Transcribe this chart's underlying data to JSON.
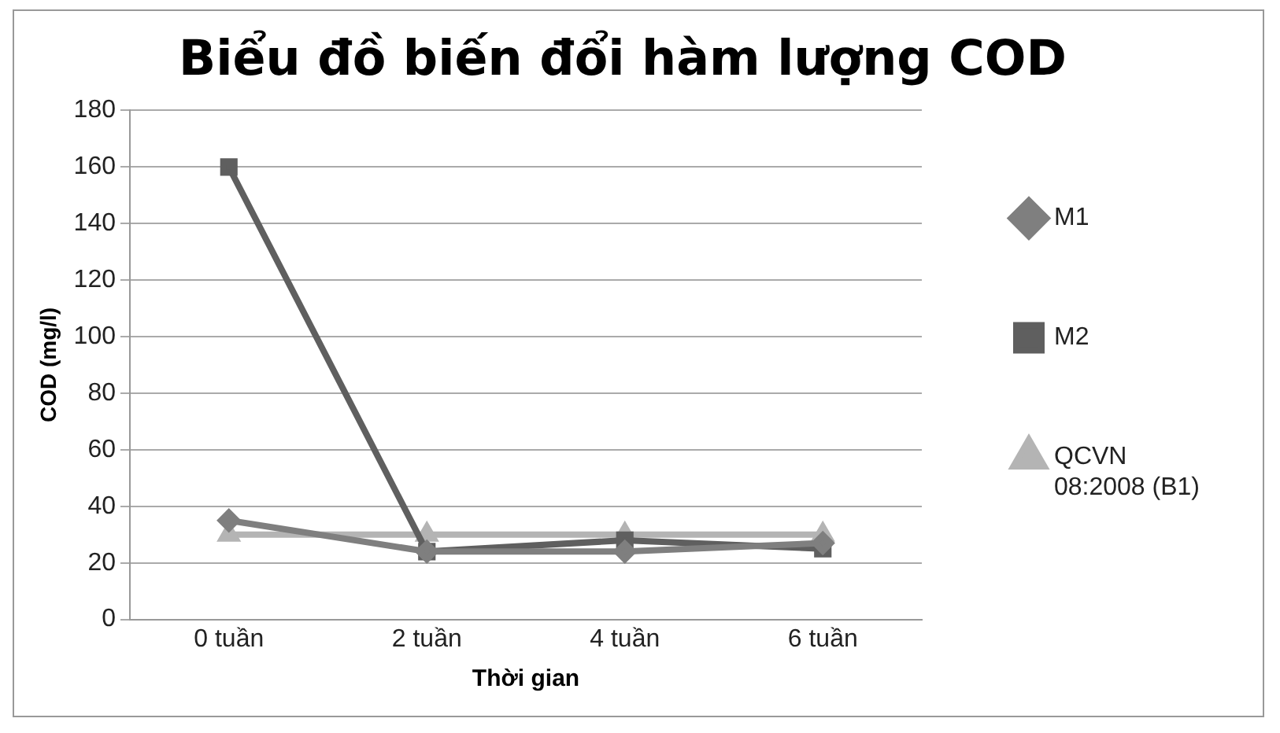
{
  "chart_data": {
    "type": "line",
    "title": "Biểu đồ biến đổi hàm lượng COD",
    "xlabel": "Thời gian",
    "ylabel": "COD (mg/l)",
    "categories": [
      "0 tuần",
      "2 tuần",
      "4 tuần",
      "6 tuần"
    ],
    "series": [
      {
        "name": "M1",
        "color": "#7f7f7f",
        "marker": "diamond",
        "values": [
          35,
          24,
          24,
          27
        ]
      },
      {
        "name": "M2",
        "color": "#5f5f5f",
        "marker": "square",
        "values": [
          160,
          24,
          28,
          25
        ]
      },
      {
        "name": "QCVN 08:2008 (B1)",
        "color": "#b4b4b4",
        "marker": "triangle",
        "values": [
          30,
          30,
          30,
          30
        ]
      }
    ],
    "ylim": [
      0,
      180
    ],
    "yticks": [
      0,
      20,
      40,
      60,
      80,
      100,
      120,
      140,
      160,
      180
    ],
    "grid": "y",
    "legend": "right"
  }
}
